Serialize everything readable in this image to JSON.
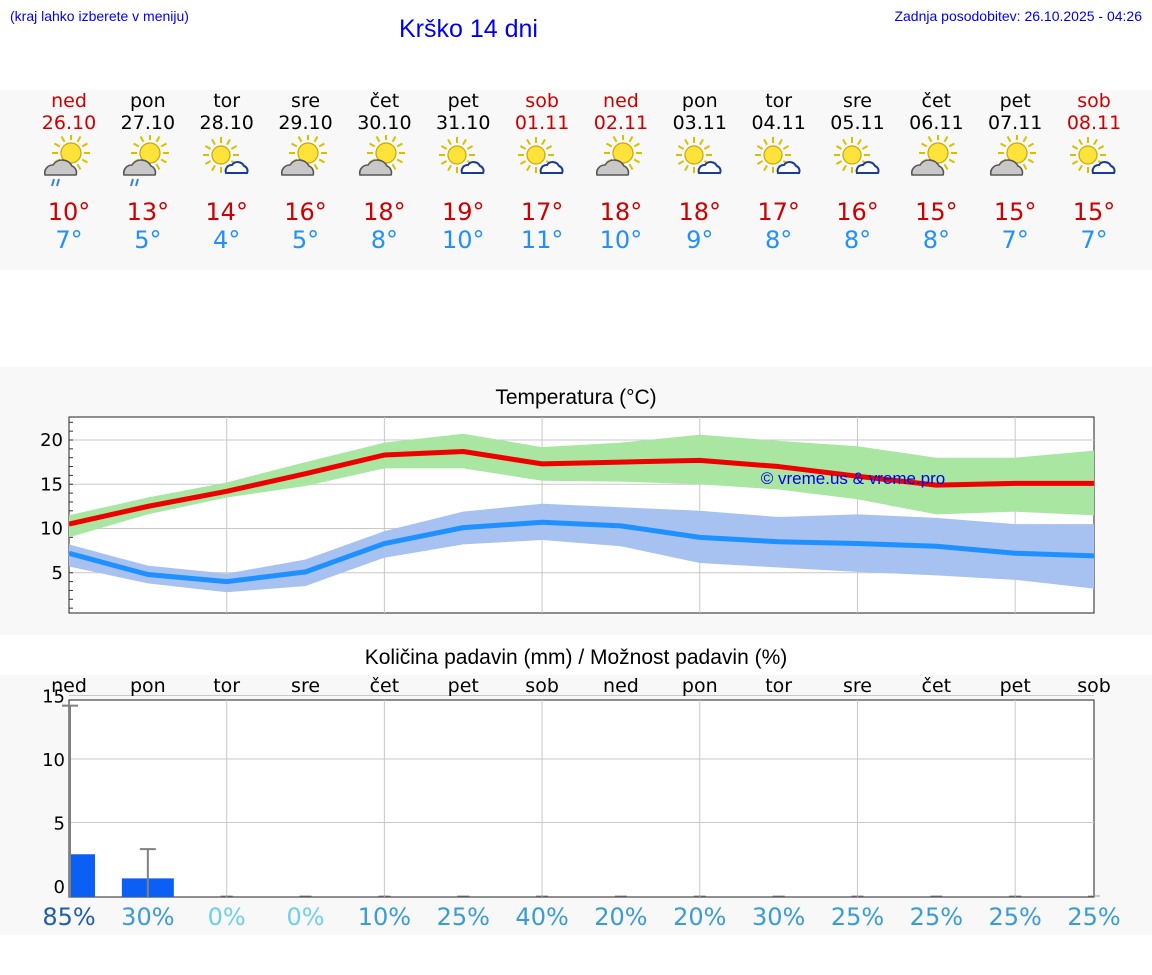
{
  "header": {
    "hint": "(kraj lahko izberete v meniju)",
    "title": "Krško 14 dni",
    "updated": "Zadnja posodobitev: 26.10.2025 - 04:26"
  },
  "days": [
    {
      "name": "ned",
      "date": "26.10",
      "weekend": true,
      "icon": "partly-cloudy-rain-icon",
      "tmax": "10°",
      "tmin": "7°"
    },
    {
      "name": "pon",
      "date": "27.10",
      "weekend": false,
      "icon": "partly-cloudy-rain-icon",
      "tmax": "13°",
      "tmin": "5°"
    },
    {
      "name": "tor",
      "date": "28.10",
      "weekend": false,
      "icon": "sun-small-cloud-icon",
      "tmax": "14°",
      "tmin": "4°"
    },
    {
      "name": "sre",
      "date": "29.10",
      "weekend": false,
      "icon": "partly-cloudy-icon",
      "tmax": "16°",
      "tmin": "5°"
    },
    {
      "name": "čet",
      "date": "30.10",
      "weekend": false,
      "icon": "partly-cloudy-icon",
      "tmax": "18°",
      "tmin": "8°"
    },
    {
      "name": "pet",
      "date": "31.10",
      "weekend": false,
      "icon": "sun-small-cloud-icon",
      "tmax": "19°",
      "tmin": "10°"
    },
    {
      "name": "sob",
      "date": "01.11",
      "weekend": true,
      "icon": "sun-small-cloud-icon",
      "tmax": "17°",
      "tmin": "11°"
    },
    {
      "name": "ned",
      "date": "02.11",
      "weekend": true,
      "icon": "partly-cloudy-icon",
      "tmax": "18°",
      "tmin": "10°"
    },
    {
      "name": "pon",
      "date": "03.11",
      "weekend": false,
      "icon": "sun-small-cloud-icon",
      "tmax": "18°",
      "tmin": "9°"
    },
    {
      "name": "tor",
      "date": "04.11",
      "weekend": false,
      "icon": "sun-small-cloud-icon",
      "tmax": "17°",
      "tmin": "8°"
    },
    {
      "name": "sre",
      "date": "05.11",
      "weekend": false,
      "icon": "sun-small-cloud-icon",
      "tmax": "16°",
      "tmin": "8°"
    },
    {
      "name": "čet",
      "date": "06.11",
      "weekend": false,
      "icon": "partly-cloudy-icon",
      "tmax": "15°",
      "tmin": "8°"
    },
    {
      "name": "pet",
      "date": "07.11",
      "weekend": false,
      "icon": "partly-cloudy-icon",
      "tmax": "15°",
      "tmin": "7°"
    },
    {
      "name": "sob",
      "date": "08.11",
      "weekend": true,
      "icon": "sun-small-cloud-icon",
      "tmax": "15°",
      "tmin": "7°"
    }
  ],
  "colors": {
    "link": "#0000ee",
    "weekend": "#cc0000",
    "tmax": "#cc0000",
    "tmin": "#1e90ff",
    "maxLine": "#ee0000",
    "maxBand": "#a8e6a1",
    "minLine": "#1e90ff",
    "minBand": "#a7c1f1",
    "bar": "#0b5ff5",
    "errbar": "#808080",
    "grid": "#c8c8c8"
  },
  "chart_data": [
    {
      "type": "line",
      "title": "Temperatura (°C)",
      "watermark": "© vreme.us & vreme.pro",
      "x": [
        0,
        1,
        2,
        3,
        4,
        5,
        6,
        7,
        8,
        9,
        10,
        11,
        12,
        13
      ],
      "ylim": [
        0,
        22
      ],
      "yticks": [
        5,
        10,
        15,
        20
      ],
      "grid": true,
      "series": [
        {
          "values": [
            10.5,
            12.5,
            14.2,
            16.2,
            18.3,
            18.7,
            17.3,
            17.5,
            17.7,
            17.0,
            15.9,
            14.9,
            15.1,
            15.1
          ],
          "band_low": [
            9.0,
            11.6,
            13.5,
            14.8,
            16.8,
            16.8,
            15.4,
            15.3,
            15.0,
            14.4,
            13.3,
            11.6,
            11.9,
            11.5
          ],
          "band_high": [
            11.5,
            13.5,
            15.2,
            17.5,
            19.7,
            20.7,
            19.2,
            19.7,
            20.6,
            19.9,
            19.3,
            18.0,
            18.0,
            18.8
          ]
        },
        {
          "values": [
            7.2,
            4.8,
            4.0,
            5.1,
            8.3,
            10.1,
            10.7,
            10.3,
            9.0,
            8.5,
            8.3,
            8.0,
            7.2,
            6.9
          ],
          "band_low": [
            5.7,
            3.8,
            2.8,
            3.5,
            6.7,
            8.2,
            8.7,
            8.0,
            6.1,
            5.6,
            5.1,
            4.7,
            4.2,
            3.2
          ],
          "band_high": [
            8.2,
            5.8,
            4.9,
            6.5,
            9.7,
            11.9,
            12.8,
            12.4,
            12.0,
            11.3,
            11.6,
            11.2,
            10.5,
            10.5
          ]
        }
      ]
    },
    {
      "type": "bar",
      "title": "Količina padavin (mm) / Možnost padavin (%)",
      "categories": [
        "ned",
        "pon",
        "tor",
        "sre",
        "čet",
        "pet",
        "sob",
        "ned",
        "pon",
        "tor",
        "sre",
        "čet",
        "pet",
        "sob"
      ],
      "ylim": [
        -1,
        15.5
      ],
      "yticks": [
        0,
        5,
        10,
        15
      ],
      "grid": true,
      "values": [
        2.5,
        0.6,
        0,
        0,
        0,
        0,
        0,
        0,
        0,
        0,
        0,
        0,
        0,
        0
      ],
      "error_high": [
        14.2,
        2.9,
        0,
        0,
        0,
        0,
        0,
        0,
        0,
        0,
        0,
        0,
        0,
        0
      ],
      "probability": [
        "85%",
        "30%",
        "0%",
        "0%",
        "10%",
        "25%",
        "40%",
        "20%",
        "20%",
        "30%",
        "25%",
        "25%",
        "25%",
        "25%"
      ],
      "probability_colors": [
        "#1f5fa8",
        "#3a9bd5",
        "#6fd0e8",
        "#6fd0e8",
        "#3a9bd5",
        "#3a9bd5",
        "#3a9bd5",
        "#3a9bd5",
        "#3a9bd5",
        "#3a9bd5",
        "#3a9bd5",
        "#3a9bd5",
        "#3a9bd5",
        "#3a9bd5"
      ]
    }
  ]
}
